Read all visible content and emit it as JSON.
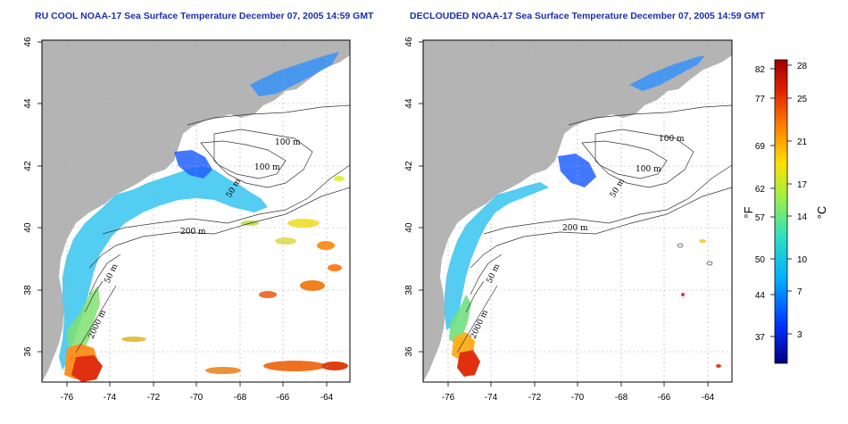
{
  "titles": {
    "left": "RU COOL NOAA-17 Sea Surface Temperature December 07, 2005 14:59 GMT",
    "right": "DECLOUDED NOAA-17 Sea Surface Temperature December 07, 2005 14:59 GMT"
  },
  "axes": {
    "x_ticks": [
      "-76",
      "-74",
      "-72",
      "-70",
      "-68",
      "-66",
      "-64"
    ],
    "y_ticks": [
      "46",
      "44",
      "42",
      "40",
      "38",
      "36"
    ]
  },
  "contour_labels": {
    "left": [
      "100 m",
      "100 m",
      "50 m",
      "200 m",
      "50 m",
      "2000 m"
    ],
    "right": [
      "100 m",
      "100 m",
      "50 m",
      "200 m",
      "50 m",
      "2000 m"
    ]
  },
  "colorbar": {
    "fahrenheit_ticks": [
      "82",
      "77",
      "69",
      "62",
      "57",
      "50",
      "44",
      "37"
    ],
    "celsius_ticks": [
      "28",
      "25",
      "21",
      "17",
      "14",
      "10",
      "7",
      "3"
    ],
    "f_unit": "°F",
    "c_unit": "°C",
    "colors": [
      "#000080",
      "#0030ff",
      "#00b0ff",
      "#30e0c0",
      "#a0f040",
      "#ffe000",
      "#ff8000",
      "#e02000",
      "#a00000"
    ]
  },
  "colors": {
    "land": "#b4b4b4",
    "grid": "#aaaaaa",
    "title": "#1a2fb0"
  }
}
